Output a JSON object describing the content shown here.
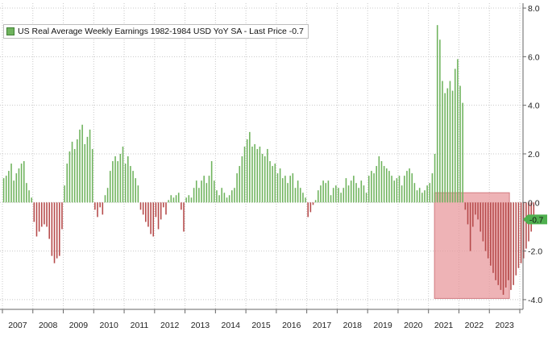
{
  "legend": {
    "label": "US Real Average Weekly Earnings 1982-1984 USD YoY SA - Last Price -0.7",
    "swatch_color": "#6fb35d"
  },
  "chart_data": {
    "type": "bar",
    "series": [
      {
        "name": "US Real Average Weekly Earnings 1982-1984 USD YoY SA - Last Price -0.7",
        "x_start": "2007-01",
        "x_end": "2023-06",
        "frequency": "monthly",
        "values": [
          1.0,
          1.1,
          1.3,
          1.6,
          0.9,
          1.2,
          1.4,
          1.6,
          1.7,
          0.8,
          0.5,
          0.2,
          -0.8,
          -1.4,
          -1.2,
          -1.0,
          -0.9,
          -1.0,
          -1.5,
          -2.2,
          -2.5,
          -2.3,
          -2.2,
          -1.1,
          0.7,
          1.6,
          2.1,
          2.5,
          2.2,
          2.6,
          3.0,
          3.2,
          2.4,
          2.7,
          3.0,
          2.2,
          -0.3,
          -0.6,
          -0.2,
          -0.5,
          0.3,
          0.6,
          1.3,
          1.7,
          1.9,
          1.7,
          2.0,
          2.3,
          1.6,
          1.9,
          1.5,
          1.3,
          1.0,
          0.7,
          -0.3,
          -0.5,
          -0.8,
          -1.0,
          -1.3,
          -1.4,
          -0.6,
          -1.1,
          -0.7,
          -0.2,
          -0.5,
          0.1,
          0.3,
          0.2,
          0.3,
          0.4,
          -0.3,
          -1.2,
          0.2,
          0.3,
          0.2,
          0.6,
          0.9,
          0.6,
          0.9,
          1.1,
          0.8,
          1.1,
          1.7,
          0.9,
          0.5,
          0.3,
          0.6,
          0.4,
          0.2,
          0.3,
          0.5,
          0.6,
          1.2,
          1.5,
          1.9,
          2.3,
          2.6,
          2.9,
          2.3,
          2.4,
          2.2,
          2.3,
          2.0,
          1.9,
          2.2,
          1.7,
          1.5,
          1.6,
          1.2,
          1.4,
          1.0,
          1.1,
          0.8,
          1.1,
          1.2,
          0.6,
          0.9,
          0.6,
          0.4,
          0.2,
          -0.6,
          -0.4,
          -0.1,
          0.1,
          0.5,
          0.7,
          0.9,
          0.8,
          0.9,
          0.3,
          0.6,
          0.7,
          0.6,
          0.4,
          0.6,
          1.0,
          0.7,
          0.9,
          1.1,
          0.8,
          0.6,
          0.9,
          0.7,
          0.4,
          1.1,
          1.3,
          1.2,
          1.5,
          1.9,
          1.7,
          1.5,
          1.4,
          1.3,
          1.1,
          0.9,
          1.0,
          1.1,
          0.7,
          1.1,
          1.3,
          1.4,
          1.2,
          0.8,
          0.5,
          0.6,
          0.4,
          0.5,
          0.7,
          0.8,
          1.2,
          2.0,
          7.3,
          6.7,
          5.0,
          4.5,
          4.7,
          5.0,
          4.6,
          5.5,
          5.9,
          4.8,
          4.1,
          -0.3,
          -0.9,
          -2.0,
          -1.0,
          -0.5,
          -0.7,
          -1.2,
          -1.6,
          -2.0,
          -2.3,
          -2.6,
          -2.9,
          -3.2,
          -3.4,
          -3.6,
          -3.8,
          -3.5,
          -3.2,
          -3.6,
          -3.4,
          -3.0,
          -2.7,
          -2.5,
          -2.3,
          -1.9,
          -1.6,
          -1.2,
          -0.7
        ]
      }
    ],
    "x_tick_labels": [
      "2007",
      "2008",
      "2009",
      "2010",
      "2011",
      "2012",
      "2013",
      "2014",
      "2015",
      "2016",
      "2017",
      "2018",
      "2019",
      "2020",
      "2021",
      "2022",
      "2023"
    ],
    "y_ticks": [
      -4.0,
      -2.0,
      0.0,
      2.0,
      4.0,
      6.0,
      8.0
    ],
    "y_tick_labels": [
      "-4.0",
      "-2.0",
      "0.0",
      "2.0",
      "4.0",
      "6.0",
      "8.0"
    ],
    "ylim": [
      -4.4,
      8.2
    ],
    "grid": "dotted",
    "y_axis_side": "right",
    "legend_position": "top-left",
    "last_value": -0.7,
    "last_value_label": "-0.7",
    "highlight": {
      "x_start": "2021-04",
      "x_end": "2023-06",
      "color": "#e89a9e"
    },
    "colors": {
      "positive": "#6fb35d",
      "negative": "#b64a4a",
      "last_value_tag": "#4fb04f"
    },
    "title": "",
    "xlabel": "",
    "ylabel": ""
  }
}
